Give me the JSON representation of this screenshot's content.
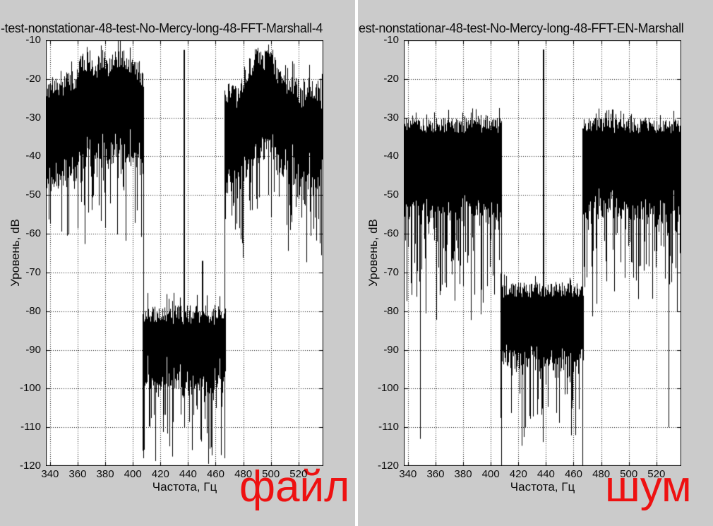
{
  "screen": {
    "bg": "#cbcbcb",
    "divider_color": "#ffffff",
    "plot_bg": "#ffffff",
    "grid_color": "#1a1a1a",
    "annotation_color": "#ee1111",
    "line_color": "#000000"
  },
  "chart_data": [
    {
      "type": "line",
      "title": "-test-nonstationar-48-test-No-Mercy-long-48-FFT-Marshall-4",
      "xlabel": "Частота, Гц",
      "ylabel": "Уровень, dB",
      "annotation": "файл",
      "xlim": [
        337,
        538
      ],
      "ylim": [
        -120,
        -10
      ],
      "xticks": [
        340,
        360,
        380,
        400,
        420,
        440,
        460,
        480,
        500,
        520
      ],
      "yticks": [
        -10,
        -20,
        -30,
        -40,
        -50,
        -60,
        -70,
        -80,
        -90,
        -100,
        -110,
        -120
      ],
      "grid": "dotted",
      "legend": "none",
      "seed": 1337,
      "bands": [
        {
          "range": [
            337,
            407.5
          ],
          "top_env": [
            [
              337,
              -24
            ],
            [
              343,
              -21
            ],
            [
              348,
              -23
            ],
            [
              353,
              -19
            ],
            [
              358,
              -22
            ],
            [
              363,
              -16
            ],
            [
              368,
              -15
            ],
            [
              373,
              -18
            ],
            [
              377,
              -14
            ],
            [
              382,
              -17
            ],
            [
              386,
              -14
            ],
            [
              391,
              -16
            ],
            [
              395,
              -15
            ],
            [
              400,
              -18
            ],
            [
              404,
              -17
            ],
            [
              407.5,
              -21
            ]
          ],
          "top_jitter": 3,
          "mass_depth": 21,
          "mass_jitter": 5,
          "dip_chance": 0.3,
          "dip_max": 20,
          "deep_chance": 0.015,
          "deep_level": -64
        },
        {
          "range": [
            407.5,
            466.5
          ],
          "top_env": [
            [
              407.5,
              -81
            ],
            [
              466.5,
              -81
            ]
          ],
          "top_jitter": 2.5,
          "mass_depth": 16,
          "mass_jitter": 4,
          "dip_chance": 0.35,
          "dip_max": 18,
          "deep_chance": 0.03,
          "deep_level": -117
        },
        {
          "range": [
            466.5,
            538
          ],
          "top_env": [
            [
              466.5,
              -26
            ],
            [
              471,
              -22
            ],
            [
              476,
              -25
            ],
            [
              481,
              -19
            ],
            [
              486,
              -16
            ],
            [
              490,
              -14
            ],
            [
              494,
              -17
            ],
            [
              498,
              -13
            ],
            [
              503,
              -17
            ],
            [
              507,
              -20
            ],
            [
              512,
              -23
            ],
            [
              517,
              -21
            ],
            [
              522,
              -25
            ],
            [
              527,
              -22
            ],
            [
              532,
              -24
            ],
            [
              538,
              -25
            ]
          ],
          "top_jitter": 3,
          "mass_depth": 21,
          "mass_jitter": 5,
          "dip_chance": 0.3,
          "dip_max": 20,
          "deep_chance": 0.015,
          "deep_level": -64
        }
      ],
      "walls": [
        {
          "freq": 407.5,
          "from": -22,
          "to": -118
        },
        {
          "freq": 466.5,
          "from": -23,
          "to": -118
        }
      ],
      "spikes": [
        {
          "freq": 437,
          "level": -12.5,
          "base": -95
        },
        {
          "freq": 450.5,
          "level": -67,
          "base": -88
        }
      ],
      "deep_dips": []
    },
    {
      "type": "line",
      "title": "est-nonstationar-48-test-No-Mercy-long-48-FFT-EN-Marshall",
      "xlabel": "Частота, Гц",
      "ylabel": "Уровень, dB",
      "annotation": "шум",
      "xlim": [
        337,
        538
      ],
      "ylim": [
        -120,
        -10
      ],
      "xticks": [
        340,
        360,
        380,
        400,
        420,
        440,
        460,
        480,
        500,
        520
      ],
      "yticks": [
        -10,
        -20,
        -30,
        -40,
        -50,
        -60,
        -70,
        -80,
        -90,
        -100,
        -110,
        -120
      ],
      "grid": "dotted",
      "legend": "none",
      "seed": 9042,
      "bands": [
        {
          "range": [
            337,
            407.5
          ],
          "top_env": [
            [
              337,
              -32
            ],
            [
              407.5,
              -32
            ]
          ],
          "top_jitter": 2,
          "mass_depth": 20,
          "mass_jitter": 5,
          "dip_chance": 0.45,
          "dip_max": 22,
          "deep_chance": 0.02,
          "deep_level": -80
        },
        {
          "range": [
            407.5,
            466.5
          ],
          "top_env": [
            [
              407.5,
              -74.5
            ],
            [
              466.5,
              -74.5
            ]
          ],
          "top_jitter": 2,
          "mass_depth": 16,
          "mass_jitter": 4,
          "dip_chance": 0.4,
          "dip_max": 18,
          "deep_chance": 0.025,
          "deep_level": -112
        },
        {
          "range": [
            466.5,
            538
          ],
          "top_env": [
            [
              466.5,
              -32
            ],
            [
              538,
              -32
            ]
          ],
          "top_jitter": 2,
          "mass_depth": 20,
          "mass_jitter": 5,
          "dip_chance": 0.45,
          "dip_max": 22,
          "deep_chance": 0.02,
          "deep_level": -80
        }
      ],
      "walls": [
        {
          "freq": 407.5,
          "from": -32,
          "to": -120
        },
        {
          "freq": 466.5,
          "from": -33,
          "to": -120
        }
      ],
      "spikes": [
        {
          "freq": 438.5,
          "level": -12.4,
          "base": -90
        }
      ],
      "deep_dips": [
        {
          "freq": 349,
          "level": -113,
          "base": -33
        },
        {
          "freq": 529,
          "level": -110,
          "base": -33
        }
      ]
    }
  ]
}
